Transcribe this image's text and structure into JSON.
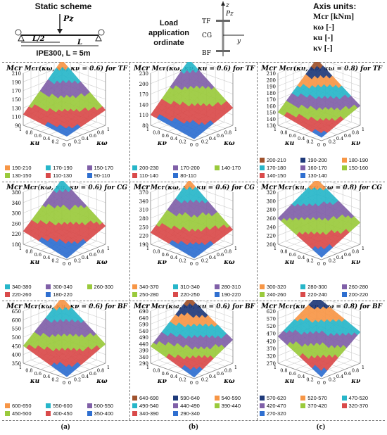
{
  "header": {
    "static_scheme": {
      "title": "Static scheme",
      "load_label": "Pz",
      "half_span_label": "L/2",
      "span_label": "L",
      "caption": "IPE300, L = 5m"
    },
    "load_ordinate": {
      "title_line1": "Load",
      "title_line2": "application",
      "title_line3": "ordinate",
      "z_label": "z",
      "pz_label": "Pz",
      "y_label": "y",
      "levels": [
        "TF",
        "CG",
        "BF"
      ]
    },
    "axis_units": {
      "title": "Axis units:",
      "rows": [
        "Mcr [kNm]",
        "κω [-]",
        "κu [-]",
        "κv [-]"
      ]
    }
  },
  "colors": {
    "ramp": [
      "#2f6fd0",
      "#d94a4a",
      "#9aca3c",
      "#8060a8",
      "#27b6c9",
      "#f79646",
      "#1f3a7a",
      "#a0522d"
    ]
  },
  "footer": {
    "labels": [
      "(a)",
      "(b)",
      "(c)"
    ]
  },
  "chart_data": [
    {
      "type": "surface3d",
      "title": "Mcr(κω, κu, κν = 0.6) for TF",
      "z_axis_label": "Mcr",
      "x_axis_label": "κu",
      "y_axis_label": "κω",
      "x_ticks": [
        "1",
        "0.8",
        "0.6",
        "0.4",
        "0.2",
        "0"
      ],
      "y_ticks": [
        "0",
        "0.2",
        "0.4",
        "0.6",
        "0.8",
        "1"
      ],
      "z_ticks": [
        "90",
        "110",
        "130",
        "150",
        "170",
        "190",
        "210"
      ],
      "zlim": [
        90,
        210
      ],
      "corners": {
        "x0y0": 100,
        "x1y0": 115,
        "x0y1": 125,
        "x1y1": 205
      },
      "legend": [
        "190-210",
        "170-190",
        "150-170",
        "130-150",
        "110-130",
        "90-110"
      ]
    },
    {
      "type": "surface3d",
      "title": "Mcr(κω, κν, κu = 0.6) for TF",
      "z_axis_label": "Mcr",
      "x_axis_label": "κν",
      "y_axis_label": "κω",
      "x_ticks": [
        "1",
        "0.8",
        "0.6",
        "0.4",
        "0.2",
        "0"
      ],
      "y_ticks": [
        "0",
        "0.2",
        "0.4",
        "0.6",
        "0.8",
        "1"
      ],
      "z_ticks": [
        "80",
        "110",
        "140",
        "170",
        "200",
        "230"
      ],
      "zlim": [
        80,
        230
      ],
      "corners": {
        "x0y0": 85,
        "x1y0": 110,
        "x0y1": 130,
        "x1y1": 225
      },
      "legend": [
        "200-230",
        "170-200",
        "140-170",
        "110-140",
        "80-110"
      ]
    },
    {
      "type": "surface3d",
      "title": "Mcr(κu, κν, κω = 0.8) for TF",
      "z_axis_label": "Mcr",
      "x_axis_label": "κu",
      "y_axis_label": "κν",
      "x_ticks": [
        "1",
        "0.8",
        "0.6",
        "0.4",
        "0.2",
        "0"
      ],
      "y_ticks": [
        "0",
        "0.2",
        "0.4",
        "0.6",
        "0.8",
        "1"
      ],
      "z_ticks": [
        "130",
        "140",
        "150",
        "160",
        "170",
        "180",
        "190",
        "200",
        "210"
      ],
      "zlim": [
        130,
        210
      ],
      "corners": {
        "x0y0": 135,
        "x1y0": 150,
        "x0y1": 160,
        "x1y1": 208
      },
      "legend": [
        "200-210",
        "190-200",
        "180-190",
        "170-180",
        "160-170",
        "150-160",
        "140-150",
        "130-140"
      ]
    },
    {
      "type": "surface3d",
      "title": "Mcr(κω, κu, κν = 0.6) for CG",
      "z_axis_label": "Mcr",
      "x_axis_label": "κu",
      "y_axis_label": "κω",
      "x_ticks": [
        "1",
        "0.8",
        "0.6",
        "0.4",
        "0.2",
        "0"
      ],
      "y_ticks": [
        "0",
        "0.2",
        "0.4",
        "0.6",
        "0.8",
        "1"
      ],
      "z_ticks": [
        "180",
        "220",
        "260",
        "300",
        "340",
        "380"
      ],
      "zlim": [
        180,
        380
      ],
      "corners": {
        "x0y0": 185,
        "x1y0": 230,
        "x0y1": 250,
        "x1y1": 370
      },
      "legend": [
        "340-380",
        "300-340",
        "260-300",
        "220-260",
        "180-220"
      ]
    },
    {
      "type": "surface3d",
      "title": "Mcr(κω, κν, κu = 0.6) for CG",
      "z_axis_label": "Mcr",
      "x_axis_label": "κν",
      "y_axis_label": "κω",
      "x_ticks": [
        "1",
        "0.8",
        "0.6",
        "0.4",
        "0.2",
        "0"
      ],
      "y_ticks": [
        "0",
        "0.2",
        "0.4",
        "0.6",
        "0.8",
        "1"
      ],
      "z_ticks": [
        "190",
        "220",
        "250",
        "280",
        "310",
        "340",
        "370"
      ],
      "zlim": [
        190,
        370
      ],
      "corners": {
        "x0y0": 195,
        "x1y0": 230,
        "x0y1": 240,
        "x1y1": 360
      },
      "legend": [
        "340-370",
        "310-340",
        "280-310",
        "250-280",
        "220-250",
        "190-220"
      ]
    },
    {
      "type": "surface3d",
      "title": "Mcr(κu, κν, κω = 0.8) for CG",
      "z_axis_label": "Mcr",
      "x_axis_label": "κu",
      "y_axis_label": "κν",
      "x_ticks": [
        "1",
        "0.8",
        "0.6",
        "0.4",
        "0.2",
        "0"
      ],
      "y_ticks": [
        "0",
        "0.2",
        "0.4",
        "0.6",
        "0.8",
        "1"
      ],
      "z_ticks": [
        "200",
        "220",
        "240",
        "260",
        "280",
        "300",
        "320"
      ],
      "zlim": [
        200,
        320
      ],
      "corners": {
        "x0y0": 205,
        "x1y0": 260,
        "x0y1": 250,
        "x1y1": 315
      },
      "legend": [
        "300-320",
        "280-300",
        "260-280",
        "240-260",
        "220-240",
        "200-220"
      ]
    },
    {
      "type": "surface3d",
      "title": "Mcr(κω, κu, κν = 0.6) for BF",
      "z_axis_label": "Mcr",
      "x_axis_label": "κu",
      "y_axis_label": "κω",
      "x_ticks": [
        "1",
        "0.8",
        "0.6",
        "0.4",
        "0.2",
        "0"
      ],
      "y_ticks": [
        "0",
        "0.2",
        "0.4",
        "0.6",
        "0.8",
        "1"
      ],
      "z_ticks": [
        "350",
        "400",
        "450",
        "500",
        "550",
        "600",
        "650"
      ],
      "zlim": [
        350,
        650
      ],
      "corners": {
        "x0y0": 360,
        "x1y0": 450,
        "x0y1": 460,
        "x1y1": 640
      },
      "legend": [
        "600-650",
        "550-600",
        "500-550",
        "450-500",
        "400-450",
        "350-400"
      ]
    },
    {
      "type": "surface3d",
      "title": "Mcr(κω, κν, κu = 0.6) for BF",
      "z_axis_label": "Mcr",
      "x_axis_label": "κν",
      "y_axis_label": "κω",
      "x_ticks": [
        "1",
        "0.8",
        "0.6",
        "0.4",
        "0.2",
        "0"
      ],
      "y_ticks": [
        "0",
        "0.2",
        "0.4",
        "0.6",
        "0.8",
        "1"
      ],
      "z_ticks": [
        "290",
        "340",
        "390",
        "440",
        "490",
        "540",
        "590",
        "640",
        "690"
      ],
      "zlim": [
        290,
        690
      ],
      "corners": {
        "x0y0": 300,
        "x1y0": 420,
        "x0y1": 470,
        "x1y1": 680
      },
      "legend": [
        "640-690",
        "590-640",
        "540-590",
        "490-540",
        "440-490",
        "390-440",
        "340-390",
        "290-340"
      ]
    },
    {
      "type": "surface3d",
      "title": "Mcr(κu, κν, κω = 0.8) for BF",
      "z_axis_label": "Mcr",
      "x_axis_label": "κu",
      "y_axis_label": "κν",
      "x_ticks": [
        "1",
        "0.8",
        "0.6",
        "0.4",
        "0.2",
        "0"
      ],
      "y_ticks": [
        "0",
        "0.2",
        "0.4",
        "0.6",
        "0.8",
        "1"
      ],
      "z_ticks": [
        "270",
        "320",
        "370",
        "420",
        "470",
        "520",
        "570",
        "620"
      ],
      "zlim": [
        270,
        620
      ],
      "corners": {
        "x0y0": 280,
        "x1y0": 450,
        "x0y1": 480,
        "x1y1": 615
      },
      "legend": [
        "570-620",
        "520-570",
        "470-520",
        "420-470",
        "370-420",
        "320-370",
        "270-320"
      ]
    }
  ]
}
